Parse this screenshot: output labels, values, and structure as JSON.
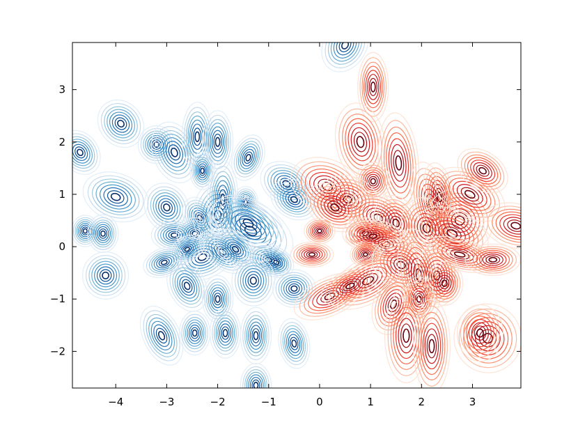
{
  "chart_data": {
    "type": "contour",
    "title": "",
    "xlabel": "",
    "ylabel": "",
    "xlim": [
      -4.85,
      3.95
    ],
    "ylim": [
      -2.7,
      3.9
    ],
    "xticks": [
      {
        "value": -4,
        "label": "−4"
      },
      {
        "value": -3,
        "label": "−3"
      },
      {
        "value": -2,
        "label": "−2"
      },
      {
        "value": -1,
        "label": "−1"
      },
      {
        "value": 0,
        "label": "0"
      },
      {
        "value": 1,
        "label": "1"
      },
      {
        "value": 2,
        "label": "2"
      },
      {
        "value": 3,
        "label": "3"
      }
    ],
    "yticks": [
      {
        "value": -2,
        "label": "−2"
      },
      {
        "value": -1,
        "label": "−1"
      },
      {
        "value": 0,
        "label": "0"
      },
      {
        "value": 1,
        "label": "1"
      },
      {
        "value": 2,
        "label": "2"
      },
      {
        "value": 3,
        "label": "3"
      }
    ],
    "grid": false,
    "series": [
      {
        "colormap": "Blues",
        "clusters": [
          {
            "cx": -3.9,
            "cy": 2.35,
            "sx": 0.14,
            "sy": 0.16,
            "rot": 40
          },
          {
            "cx": -3.2,
            "cy": 1.95,
            "sx": 0.12,
            "sy": 0.12,
            "rot": 0
          },
          {
            "cx": -2.85,
            "cy": 1.8,
            "sx": 0.14,
            "sy": 0.2,
            "rot": 20
          },
          {
            "cx": -2.4,
            "cy": 2.1,
            "sx": 0.1,
            "sy": 0.22,
            "rot": 0
          },
          {
            "cx": -2.0,
            "cy": 2.0,
            "sx": 0.1,
            "sy": 0.2,
            "rot": 0
          },
          {
            "cx": -2.3,
            "cy": 1.45,
            "sx": 0.08,
            "sy": 0.12,
            "rot": 0
          },
          {
            "cx": -1.4,
            "cy": 1.7,
            "sx": 0.1,
            "sy": 0.15,
            "rot": -20
          },
          {
            "cx": -4.7,
            "cy": 1.8,
            "sx": 0.12,
            "sy": 0.15,
            "rot": 35
          },
          {
            "cx": -4.0,
            "cy": 0.95,
            "sx": 0.22,
            "sy": 0.15,
            "rot": -20
          },
          {
            "cx": -3.0,
            "cy": 0.75,
            "sx": 0.14,
            "sy": 0.16,
            "rot": 30
          },
          {
            "cx": -2.85,
            "cy": 0.22,
            "sx": 0.15,
            "sy": 0.1,
            "rot": 0
          },
          {
            "cx": -2.35,
            "cy": 0.55,
            "sx": 0.1,
            "sy": 0.14,
            "rot": 30
          },
          {
            "cx": -2.45,
            "cy": 0.25,
            "sx": 0.12,
            "sy": 0.1,
            "rot": 0
          },
          {
            "cx": -2.0,
            "cy": 0.6,
            "sx": 0.16,
            "sy": 0.22,
            "rot": 0
          },
          {
            "cx": -1.9,
            "cy": 0.9,
            "sx": 0.1,
            "sy": 0.25,
            "rot": 0
          },
          {
            "cx": -1.45,
            "cy": 0.85,
            "sx": 0.08,
            "sy": 0.1,
            "rot": 0
          },
          {
            "cx": -1.35,
            "cy": 0.3,
            "sx": 0.3,
            "sy": 0.18,
            "rot": -30
          },
          {
            "cx": -1.4,
            "cy": 0.45,
            "sx": 0.25,
            "sy": 0.15,
            "rot": -30
          },
          {
            "cx": -0.65,
            "cy": 1.2,
            "sx": 0.18,
            "sy": 0.13,
            "rot": -30
          },
          {
            "cx": -0.5,
            "cy": 0.9,
            "sx": 0.16,
            "sy": 0.12,
            "rot": -30
          },
          {
            "cx": -4.6,
            "cy": 0.3,
            "sx": 0.09,
            "sy": 0.1,
            "rot": 0
          },
          {
            "cx": -4.25,
            "cy": 0.25,
            "sx": 0.1,
            "sy": 0.12,
            "rot": 0
          },
          {
            "cx": -2.3,
            "cy": -0.2,
            "sx": 0.2,
            "sy": 0.14,
            "rot": 20
          },
          {
            "cx": -1.9,
            "cy": -0.1,
            "sx": 0.18,
            "sy": 0.1,
            "rot": -40
          },
          {
            "cx": -2.6,
            "cy": -0.05,
            "sx": 0.12,
            "sy": 0.08,
            "rot": 30
          },
          {
            "cx": -3.05,
            "cy": -0.3,
            "sx": 0.14,
            "sy": 0.09,
            "rot": 20
          },
          {
            "cx": -1.65,
            "cy": -0.05,
            "sx": 0.16,
            "sy": 0.1,
            "rot": -40
          },
          {
            "cx": -1.0,
            "cy": -0.25,
            "sx": 0.15,
            "sy": 0.1,
            "rot": -20
          },
          {
            "cx": -0.85,
            "cy": -0.3,
            "sx": 0.12,
            "sy": 0.09,
            "rot": -30
          },
          {
            "cx": -4.2,
            "cy": -0.55,
            "sx": 0.15,
            "sy": 0.15,
            "rot": 0
          },
          {
            "cx": -2.6,
            "cy": -0.75,
            "sx": 0.12,
            "sy": 0.17,
            "rot": 25
          },
          {
            "cx": -2.0,
            "cy": -1.0,
            "sx": 0.1,
            "sy": 0.15,
            "rot": 0
          },
          {
            "cx": -1.3,
            "cy": -0.65,
            "sx": 0.14,
            "sy": 0.16,
            "rot": 0
          },
          {
            "cx": -0.5,
            "cy": -0.8,
            "sx": 0.14,
            "sy": 0.12,
            "rot": 0
          },
          {
            "cx": -3.1,
            "cy": -1.7,
            "sx": 0.12,
            "sy": 0.2,
            "rot": 25
          },
          {
            "cx": -2.45,
            "cy": -1.65,
            "sx": 0.1,
            "sy": 0.14,
            "rot": 0
          },
          {
            "cx": -1.85,
            "cy": -1.65,
            "sx": 0.1,
            "sy": 0.16,
            "rot": 0
          },
          {
            "cx": -1.25,
            "cy": -1.7,
            "sx": 0.1,
            "sy": 0.18,
            "rot": 0
          },
          {
            "cx": -0.5,
            "cy": -1.85,
            "sx": 0.1,
            "sy": 0.16,
            "rot": 10
          },
          {
            "cx": -1.25,
            "cy": -2.65,
            "sx": 0.1,
            "sy": 0.14,
            "rot": 0
          },
          {
            "cx": 0.5,
            "cy": 3.85,
            "sx": 0.14,
            "sy": 0.18,
            "rot": -30
          }
        ]
      },
      {
        "colormap": "Reds",
        "clusters": [
          {
            "cx": 1.05,
            "cy": 3.05,
            "sx": 0.1,
            "sy": 0.22,
            "rot": 0
          },
          {
            "cx": 0.8,
            "cy": 2.0,
            "sx": 0.16,
            "sy": 0.25,
            "rot": 10
          },
          {
            "cx": 1.55,
            "cy": 1.6,
            "sx": 0.13,
            "sy": 0.32,
            "rot": 5
          },
          {
            "cx": 1.05,
            "cy": 1.25,
            "sx": 0.11,
            "sy": 0.12,
            "rot": 0
          },
          {
            "cx": 0.15,
            "cy": 1.15,
            "sx": 0.25,
            "sy": 0.17,
            "rot": -25
          },
          {
            "cx": 0.55,
            "cy": 0.9,
            "sx": 0.2,
            "sy": 0.15,
            "rot": -15
          },
          {
            "cx": 0.3,
            "cy": 0.75,
            "sx": 0.2,
            "sy": 0.14,
            "rot": -30
          },
          {
            "cx": 1.15,
            "cy": 0.55,
            "sx": 0.22,
            "sy": 0.15,
            "rot": -30
          },
          {
            "cx": 1.5,
            "cy": 0.45,
            "sx": 0.14,
            "sy": 0.18,
            "rot": 20
          },
          {
            "cx": 2.2,
            "cy": 0.8,
            "sx": 0.12,
            "sy": 0.28,
            "rot": 15
          },
          {
            "cx": 2.35,
            "cy": 0.95,
            "sx": 0.1,
            "sy": 0.22,
            "rot": 10
          },
          {
            "cx": 2.75,
            "cy": 0.5,
            "sx": 0.22,
            "sy": 0.2,
            "rot": -30
          },
          {
            "cx": 2.95,
            "cy": 1.0,
            "sx": 0.25,
            "sy": 0.14,
            "rot": -30
          },
          {
            "cx": 3.2,
            "cy": 1.45,
            "sx": 0.18,
            "sy": 0.12,
            "rot": -35
          },
          {
            "cx": 2.1,
            "cy": 0.35,
            "sx": 0.16,
            "sy": 0.2,
            "rot": 20
          },
          {
            "cx": 2.6,
            "cy": 0.25,
            "sx": 0.25,
            "sy": 0.15,
            "rot": -25
          },
          {
            "cx": 3.85,
            "cy": 0.4,
            "sx": 0.22,
            "sy": 0.14,
            "rot": -15
          },
          {
            "cx": 0.0,
            "cy": 0.3,
            "sx": 0.1,
            "sy": 0.08,
            "rot": 0
          },
          {
            "cx": 0.9,
            "cy": 0.25,
            "sx": 0.15,
            "sy": 0.1,
            "rot": 0
          },
          {
            "cx": 1.3,
            "cy": 0.05,
            "sx": 0.2,
            "sy": 0.12,
            "rot": -10
          },
          {
            "cx": 1.05,
            "cy": 0.2,
            "sx": 0.18,
            "sy": 0.1,
            "rot": 0
          },
          {
            "cx": -0.15,
            "cy": -0.15,
            "sx": 0.14,
            "sy": 0.08,
            "rot": 0
          },
          {
            "cx": 0.9,
            "cy": -0.15,
            "sx": 0.1,
            "sy": 0.08,
            "rot": 0
          },
          {
            "cx": 2.75,
            "cy": -0.15,
            "sx": 0.25,
            "sy": 0.1,
            "rot": -15
          },
          {
            "cx": 3.4,
            "cy": -0.25,
            "sx": 0.18,
            "sy": 0.1,
            "rot": 0
          },
          {
            "cx": 0.2,
            "cy": -0.95,
            "sx": 0.25,
            "sy": 0.12,
            "rot": 25
          },
          {
            "cx": 0.95,
            "cy": -0.65,
            "sx": 0.28,
            "sy": 0.14,
            "rot": 30
          },
          {
            "cx": 0.6,
            "cy": -0.75,
            "sx": 0.2,
            "sy": 0.1,
            "rot": 25
          },
          {
            "cx": 1.6,
            "cy": -0.35,
            "sx": 0.2,
            "sy": 0.15,
            "rot": -30
          },
          {
            "cx": 1.95,
            "cy": -0.55,
            "sx": 0.13,
            "sy": 0.3,
            "rot": 10
          },
          {
            "cx": 2.3,
            "cy": -0.55,
            "sx": 0.14,
            "sy": 0.2,
            "rot": 0
          },
          {
            "cx": 2.45,
            "cy": -0.7,
            "sx": 0.12,
            "sy": 0.14,
            "rot": 0
          },
          {
            "cx": 1.45,
            "cy": -1.1,
            "sx": 0.13,
            "sy": 0.2,
            "rot": -20
          },
          {
            "cx": 1.95,
            "cy": -1.0,
            "sx": 0.1,
            "sy": 0.14,
            "rot": 0
          },
          {
            "cx": 1.7,
            "cy": -1.7,
            "sx": 0.14,
            "sy": 0.3,
            "rot": 0
          },
          {
            "cx": 2.2,
            "cy": -1.9,
            "sx": 0.12,
            "sy": 0.3,
            "rot": 0
          },
          {
            "cx": 3.3,
            "cy": -1.75,
            "sx": 0.22,
            "sy": 0.22,
            "rot": 20
          },
          {
            "cx": 3.15,
            "cy": -1.65,
            "sx": 0.15,
            "sy": 0.18,
            "rot": 0
          }
        ]
      }
    ]
  },
  "colors": {
    "blues": [
      "#e2eef8",
      "#c6dbef",
      "#9ecae1",
      "#6baed6",
      "#4292c6",
      "#2171b5",
      "#08519c",
      "#08306b"
    ],
    "reds": [
      "#fde4d6",
      "#fcbba1",
      "#fc9272",
      "#fb6a4a",
      "#ef3b2c",
      "#cb181d",
      "#a50f15",
      "#67000d"
    ],
    "axis": "#000000",
    "background": "#ffffff"
  }
}
